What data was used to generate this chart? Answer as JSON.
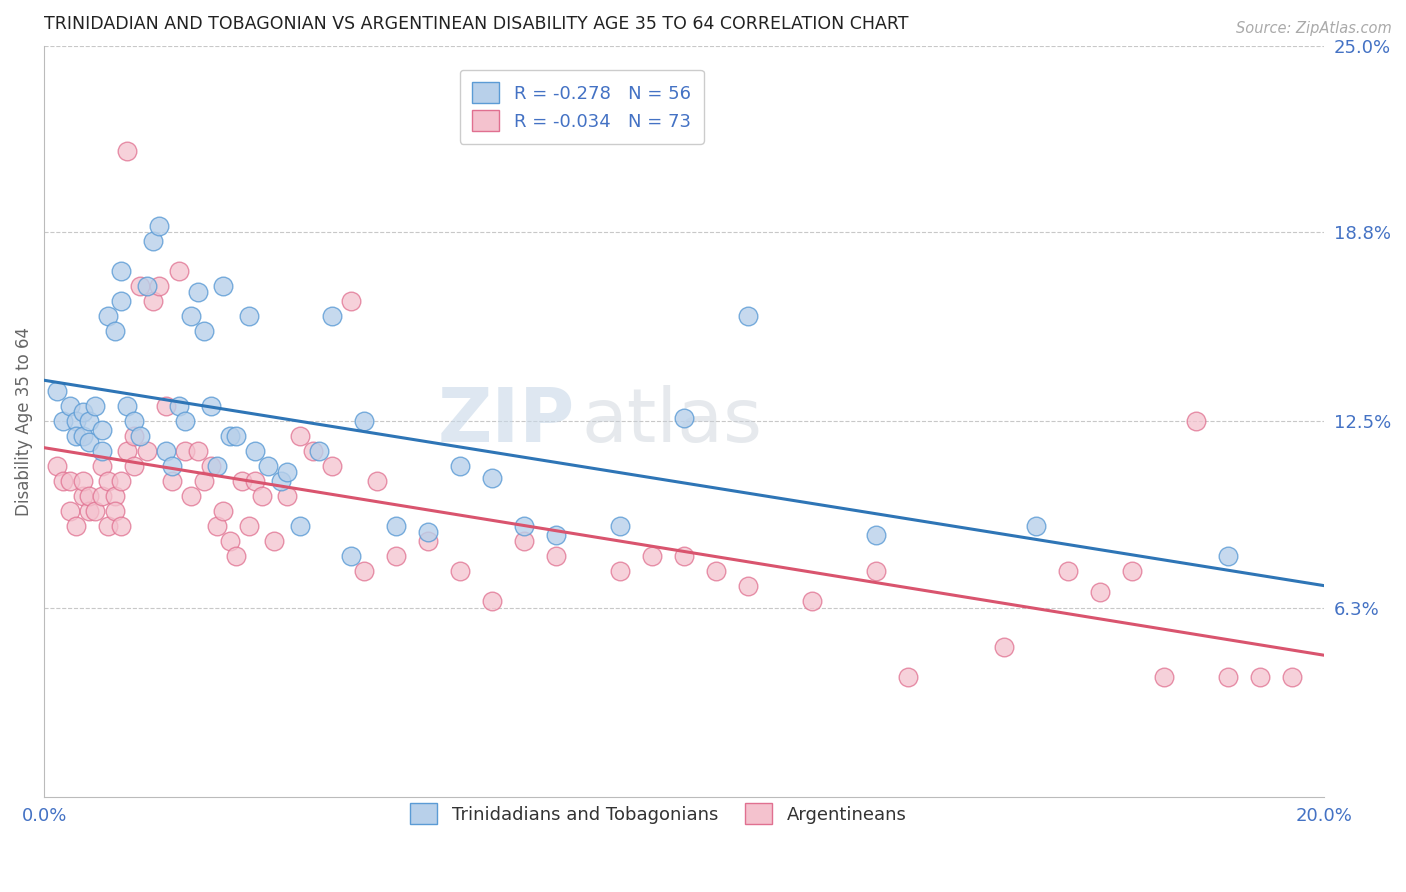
{
  "title": "TRINIDADIAN AND TOBAGONIAN VS ARGENTINEAN DISABILITY AGE 35 TO 64 CORRELATION CHART",
  "source": "Source: ZipAtlas.com",
  "ylabel": "Disability Age 35 to 64",
  "xlim": [
    0.0,
    0.2
  ],
  "ylim": [
    0.0,
    0.25
  ],
  "yticks": [
    0.063,
    0.125,
    0.188,
    0.25
  ],
  "ytick_labels": [
    "6.3%",
    "12.5%",
    "18.8%",
    "25.0%"
  ],
  "xticks": [
    0.0,
    0.05,
    0.1,
    0.15,
    0.2
  ],
  "xtick_labels": [
    "0.0%",
    "",
    "",
    "",
    "20.0%"
  ],
  "series1_color": "#b8d0ea",
  "series1_edge": "#5b9bd5",
  "series2_color": "#f4c2ce",
  "series2_edge": "#e07090",
  "line1_color": "#2e75b6",
  "line2_color": "#d9546e",
  "watermark_zip": "ZIP",
  "watermark_atlas": "atlas",
  "background_color": "#ffffff",
  "grid_color": "#c8c8c8",
  "title_color": "#222222",
  "axis_label_color": "#666666",
  "tick_label_color": "#4472c4",
  "legend_label": [
    "Trinidadians and Tobagonians",
    "Argentineans"
  ],
  "series1_R": -0.278,
  "series1_N": 56,
  "series2_R": -0.034,
  "series2_N": 73,
  "series1_x": [
    0.002,
    0.003,
    0.004,
    0.005,
    0.005,
    0.006,
    0.006,
    0.007,
    0.007,
    0.008,
    0.009,
    0.009,
    0.01,
    0.011,
    0.012,
    0.012,
    0.013,
    0.014,
    0.015,
    0.016,
    0.017,
    0.018,
    0.019,
    0.02,
    0.021,
    0.022,
    0.023,
    0.024,
    0.025,
    0.026,
    0.027,
    0.028,
    0.029,
    0.03,
    0.032,
    0.033,
    0.035,
    0.037,
    0.038,
    0.04,
    0.043,
    0.045,
    0.048,
    0.05,
    0.055,
    0.06,
    0.065,
    0.07,
    0.075,
    0.08,
    0.09,
    0.1,
    0.11,
    0.13,
    0.155,
    0.185
  ],
  "series1_y": [
    0.135,
    0.125,
    0.13,
    0.125,
    0.12,
    0.128,
    0.12,
    0.118,
    0.125,
    0.13,
    0.115,
    0.122,
    0.16,
    0.155,
    0.175,
    0.165,
    0.13,
    0.125,
    0.12,
    0.17,
    0.185,
    0.19,
    0.115,
    0.11,
    0.13,
    0.125,
    0.16,
    0.168,
    0.155,
    0.13,
    0.11,
    0.17,
    0.12,
    0.12,
    0.16,
    0.115,
    0.11,
    0.105,
    0.108,
    0.09,
    0.115,
    0.16,
    0.08,
    0.125,
    0.09,
    0.088,
    0.11,
    0.106,
    0.09,
    0.087,
    0.09,
    0.126,
    0.16,
    0.087,
    0.09,
    0.08
  ],
  "series2_x": [
    0.002,
    0.003,
    0.004,
    0.004,
    0.005,
    0.006,
    0.006,
    0.007,
    0.007,
    0.008,
    0.009,
    0.009,
    0.01,
    0.01,
    0.011,
    0.011,
    0.012,
    0.012,
    0.013,
    0.013,
    0.014,
    0.014,
    0.015,
    0.016,
    0.017,
    0.018,
    0.019,
    0.02,
    0.021,
    0.022,
    0.023,
    0.024,
    0.025,
    0.026,
    0.027,
    0.028,
    0.029,
    0.03,
    0.031,
    0.032,
    0.033,
    0.034,
    0.036,
    0.038,
    0.04,
    0.042,
    0.045,
    0.048,
    0.05,
    0.052,
    0.055,
    0.06,
    0.065,
    0.07,
    0.075,
    0.08,
    0.09,
    0.095,
    0.1,
    0.105,
    0.11,
    0.12,
    0.13,
    0.135,
    0.15,
    0.16,
    0.165,
    0.17,
    0.175,
    0.18,
    0.185,
    0.19,
    0.195
  ],
  "series2_y": [
    0.11,
    0.105,
    0.095,
    0.105,
    0.09,
    0.1,
    0.105,
    0.095,
    0.1,
    0.095,
    0.1,
    0.11,
    0.105,
    0.09,
    0.1,
    0.095,
    0.09,
    0.105,
    0.215,
    0.115,
    0.11,
    0.12,
    0.17,
    0.115,
    0.165,
    0.17,
    0.13,
    0.105,
    0.175,
    0.115,
    0.1,
    0.115,
    0.105,
    0.11,
    0.09,
    0.095,
    0.085,
    0.08,
    0.105,
    0.09,
    0.105,
    0.1,
    0.085,
    0.1,
    0.12,
    0.115,
    0.11,
    0.165,
    0.075,
    0.105,
    0.08,
    0.085,
    0.075,
    0.065,
    0.085,
    0.08,
    0.075,
    0.08,
    0.08,
    0.075,
    0.07,
    0.065,
    0.075,
    0.04,
    0.05,
    0.075,
    0.068,
    0.075,
    0.04,
    0.125,
    0.04,
    0.04,
    0.04
  ]
}
